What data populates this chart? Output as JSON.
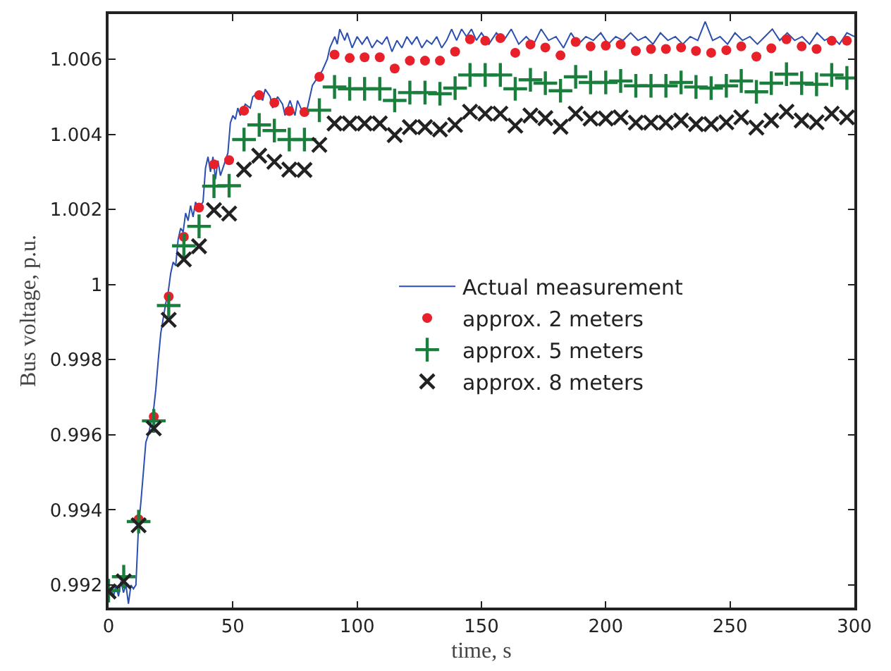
{
  "chart_data": {
    "type": "scatter",
    "xlabel": "time, s",
    "ylabel": "Bus voltage, p.u.",
    "xlim": [
      0,
      300
    ],
    "xticks": [
      0,
      50,
      100,
      150,
      200,
      250,
      300
    ],
    "ylim": [
      0.9914,
      1.0072
    ],
    "yticks": [
      0.992,
      0.994,
      0.996,
      0.998,
      1,
      1.002,
      1.004,
      1.006
    ],
    "legend": "right",
    "x": [
      0,
      6.1,
      12.1,
      18.2,
      24.2,
      30.3,
      36.4,
      42.4,
      48.5,
      54.5,
      60.6,
      66.7,
      72.7,
      78.8,
      84.8,
      90.9,
      97,
      103,
      109.1,
      115.1,
      121.2,
      127.3,
      133.3,
      139.4,
      145.4,
      151.5,
      157.6,
      163.6,
      169.7,
      175.7,
      181.8,
      187.9,
      193.9,
      200,
      206,
      212.1,
      218.2,
      224.2,
      230.3,
      236.3,
      242.4,
      248.5,
      254.5,
      260.6,
      266.6,
      272.7,
      278.8,
      284.8,
      290.9,
      297
    ],
    "series": [
      {
        "name": "Actual measurement",
        "type": "line",
        "marker": "none",
        "line_style": "solid",
        "color": "#2b4fb0",
        "x": [
          0,
          1,
          2,
          3,
          4,
          5,
          6,
          7,
          8,
          9,
          10,
          11,
          12,
          13,
          14,
          15,
          16,
          17,
          18,
          19,
          20,
          21,
          22,
          23,
          24,
          25,
          26,
          27,
          28,
          29,
          30,
          31,
          32,
          33,
          34,
          35,
          36,
          38,
          39,
          40,
          41,
          42,
          43,
          44,
          45,
          47,
          48,
          49,
          50,
          51,
          52,
          53,
          55,
          57,
          58,
          60,
          62,
          63,
          65,
          66,
          68,
          70,
          71,
          73,
          75,
          76,
          78,
          80,
          82,
          84,
          86,
          88,
          89,
          91,
          92,
          93,
          95,
          96,
          98,
          100,
          102,
          104,
          106,
          108,
          110,
          112,
          114,
          116,
          118,
          120,
          122,
          124,
          126,
          128,
          130,
          132,
          134,
          136,
          138,
          140,
          142,
          144,
          146,
          148,
          150,
          153,
          156,
          159,
          162,
          165,
          168,
          171,
          174,
          177,
          180,
          183,
          186,
          189,
          192,
          195,
          198,
          201,
          204,
          207,
          210,
          213,
          216,
          219,
          222,
          225,
          228,
          231,
          234,
          237,
          240,
          243,
          246,
          249,
          252,
          255,
          258,
          261,
          264,
          267,
          270,
          273,
          276,
          279,
          282,
          285,
          288,
          291,
          294,
          297,
          300
        ],
        "values": [
          0.9918,
          0.9919,
          0.9917,
          0.992,
          0.9917,
          0.9921,
          0.9918,
          0.992,
          0.9915,
          0.992,
          0.9919,
          0.992,
          0.9935,
          0.9942,
          0.995,
          0.9958,
          0.996,
          0.9963,
          0.9966,
          0.9972,
          0.998,
          0.9987,
          0.9991,
          0.9995,
          0.9998,
          1.0003,
          1.0006,
          1.0005,
          1.0012,
          1.0015,
          1.0014,
          1.0019,
          1.0017,
          1.0021,
          1.0018,
          1.0022,
          1.002,
          1.0022,
          1.0031,
          1.0034,
          1.003,
          1.0034,
          1.0028,
          1.0033,
          1.0029,
          1.0033,
          1.0035,
          1.0043,
          1.0045,
          1.0044,
          1.0047,
          1.0045,
          1.0048,
          1.0047,
          1.005,
          1.0051,
          1.0049,
          1.0052,
          1.005,
          1.0047,
          1.005,
          1.0048,
          1.0045,
          1.0049,
          1.0045,
          1.0049,
          1.0046,
          1.0047,
          1.0053,
          1.0055,
          1.0057,
          1.006,
          1.0063,
          1.0066,
          1.0064,
          1.0068,
          1.0065,
          1.0067,
          1.0063,
          1.0066,
          1.0064,
          1.0066,
          1.0063,
          1.0065,
          1.0064,
          1.0066,
          1.0062,
          1.0065,
          1.0063,
          1.0066,
          1.0064,
          1.0066,
          1.0063,
          1.0065,
          1.0064,
          1.0066,
          1.0063,
          1.0065,
          1.0068,
          1.0065,
          1.0068,
          1.0066,
          1.0068,
          1.0065,
          1.0067,
          1.0064,
          1.0067,
          1.0065,
          1.0068,
          1.0064,
          1.0066,
          1.0064,
          1.0068,
          1.0065,
          1.0066,
          1.0063,
          1.0067,
          1.0064,
          1.0066,
          1.0065,
          1.0067,
          1.0064,
          1.0066,
          1.0065,
          1.0067,
          1.0065,
          1.0066,
          1.0064,
          1.0067,
          1.0065,
          1.0066,
          1.0064,
          1.0066,
          1.0065,
          1.007,
          1.0065,
          1.0066,
          1.0064,
          1.0067,
          1.0065,
          1.0066,
          1.0064,
          1.0066,
          1.0068,
          1.0065,
          1.0067,
          1.0065,
          1.0066,
          1.0064,
          1.0067,
          1.0065,
          1.0066,
          1.0064,
          1.0067,
          1.0066
        ]
      },
      {
        "name": "approx. 2 meters",
        "marker": "circle",
        "color": "#e8202a",
        "values": [
          null,
          null,
          0.99375,
          0.99648,
          0.99968,
          1.00127,
          1.00205,
          1.0032,
          1.00331,
          1.00463,
          1.00504,
          1.00484,
          1.00462,
          1.00459,
          1.00553,
          1.00612,
          1.00603,
          1.00605,
          1.00605,
          1.00575,
          1.00596,
          1.00596,
          1.00596,
          1.0062,
          1.00653,
          1.00649,
          1.00656,
          1.00617,
          1.00639,
          1.00631,
          1.0061,
          1.00646,
          1.00634,
          1.00636,
          1.00639,
          1.00622,
          1.00627,
          1.00627,
          1.00631,
          1.00622,
          1.00617,
          1.00624,
          1.00634,
          1.00607,
          1.00629,
          1.00653,
          1.00634,
          1.00627,
          1.00649,
          1.00649
        ]
      },
      {
        "name": "approx. 5 meters",
        "marker": "cross",
        "color": "#1a7f3c",
        "values": [
          0.99185,
          0.99222,
          0.99369,
          0.99637,
          0.99944,
          1.00103,
          1.00155,
          1.00262,
          1.00263,
          1.00386,
          1.00425,
          1.0041,
          1.00386,
          1.00386,
          1.00464,
          1.00526,
          1.00521,
          1.00521,
          1.00521,
          1.0049,
          1.00511,
          1.00511,
          1.00508,
          1.00523,
          1.00558,
          1.00558,
          1.00558,
          1.00521,
          1.00545,
          1.00536,
          1.00516,
          1.00553,
          1.00538,
          1.00538,
          1.00542,
          1.00529,
          1.00529,
          1.00529,
          1.00538,
          1.00526,
          1.00523,
          1.00529,
          1.00542,
          1.00513,
          1.00536,
          1.0056,
          1.00536,
          1.00533,
          1.00558,
          1.0055
        ]
      },
      {
        "name": "approx. 8 meters",
        "marker": "x",
        "color": "#222222",
        "values": [
          0.99183,
          0.9921,
          0.99359,
          0.99617,
          0.99906,
          1.00067,
          1.00102,
          1.00198,
          1.00189,
          1.00306,
          1.00343,
          1.00327,
          1.00306,
          1.00305,
          1.00372,
          1.00429,
          1.00429,
          1.00429,
          1.00429,
          1.00398,
          1.00419,
          1.00419,
          1.00413,
          1.00425,
          1.0046,
          1.00455,
          1.00455,
          1.00423,
          1.0045,
          1.00443,
          1.0042,
          1.00455,
          1.00442,
          1.00442,
          1.00445,
          1.00431,
          1.00431,
          1.00431,
          1.00437,
          1.00427,
          1.00427,
          1.00432,
          1.00445,
          1.00418,
          1.00437,
          1.0046,
          1.00437,
          1.00432,
          1.00455,
          1.00445
        ]
      }
    ]
  }
}
